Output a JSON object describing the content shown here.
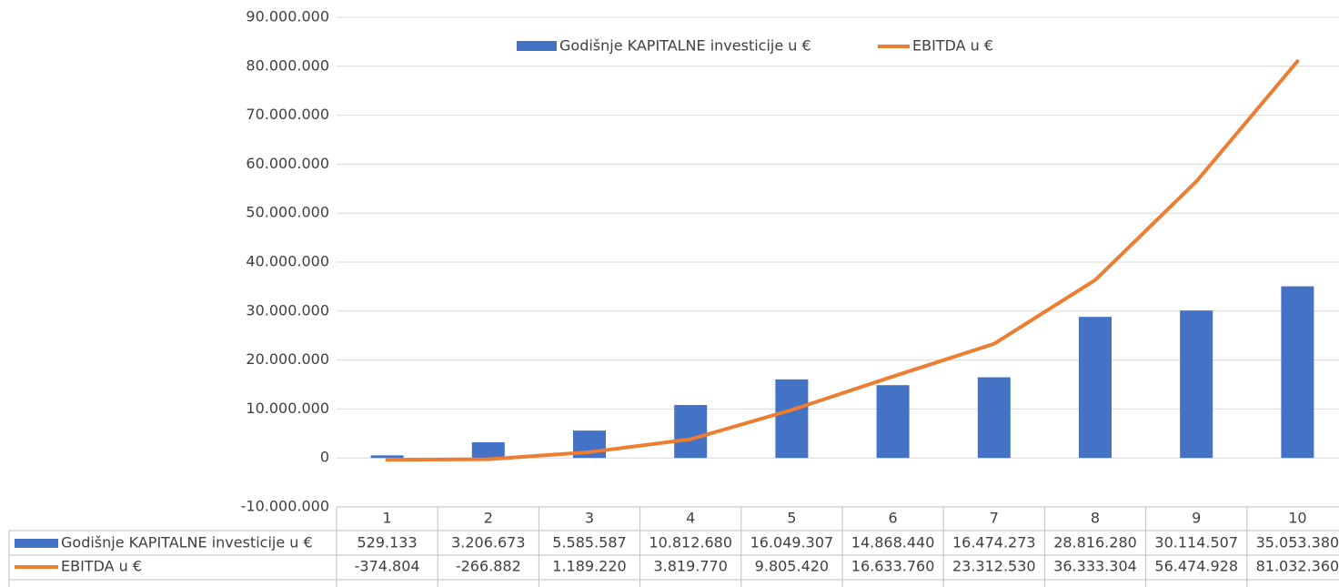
{
  "chart_data": {
    "type": "bar_line_table",
    "categories": [
      "1",
      "2",
      "3",
      "4",
      "5",
      "6",
      "7",
      "8",
      "9",
      "10"
    ],
    "series": [
      {
        "name": "Godišnje KAPITALNE investicije u €",
        "type": "bar",
        "color": "#4472c4",
        "values": [
          529133,
          3206673,
          5585587,
          10812680,
          16049307,
          14868440,
          16474273,
          28816280,
          30114507,
          35053380
        ],
        "value_labels": [
          "529.133",
          "3.206.673",
          "5.585.587",
          "10.812.680",
          "16.049.307",
          "14.868.440",
          "16.474.273",
          "28.816.280",
          "30.114.507",
          "35.053.380"
        ]
      },
      {
        "name": "EBITDA u €",
        "type": "line",
        "color": "#ed7d31",
        "values": [
          -374804,
          -266882,
          1189220,
          3819770,
          9805420,
          16633760,
          23312530,
          36333304,
          56474928,
          81032360
        ],
        "value_labels": [
          "-374.804",
          "-266.882",
          "1.189.220",
          "3.819.770",
          "9.805.420",
          "16.633.760",
          "23.312.530",
          "36.333.304",
          "56.474.928",
          "81.032.360"
        ]
      }
    ],
    "ylim": [
      -10000000,
      90000000
    ],
    "yticks": [
      {
        "value": -10000000,
        "label": "-10.000.000"
      },
      0,
      {
        "value": 10000000,
        "label": "10.000.000"
      },
      {
        "value": 20000000,
        "label": "20.000.000"
      },
      {
        "value": 30000000,
        "label": "30.000.000"
      },
      {
        "value": 40000000,
        "label": "40.000.000"
      },
      {
        "value": 50000000,
        "label": "50.000.000"
      },
      {
        "value": 60000000,
        "label": "60.000.000"
      },
      {
        "value": 70000000,
        "label": "70.000.000"
      },
      {
        "value": 80000000,
        "label": "80.000.000"
      },
      {
        "value": 90000000,
        "label": "90.000.000"
      }
    ],
    "grid": true,
    "legend": "top"
  }
}
